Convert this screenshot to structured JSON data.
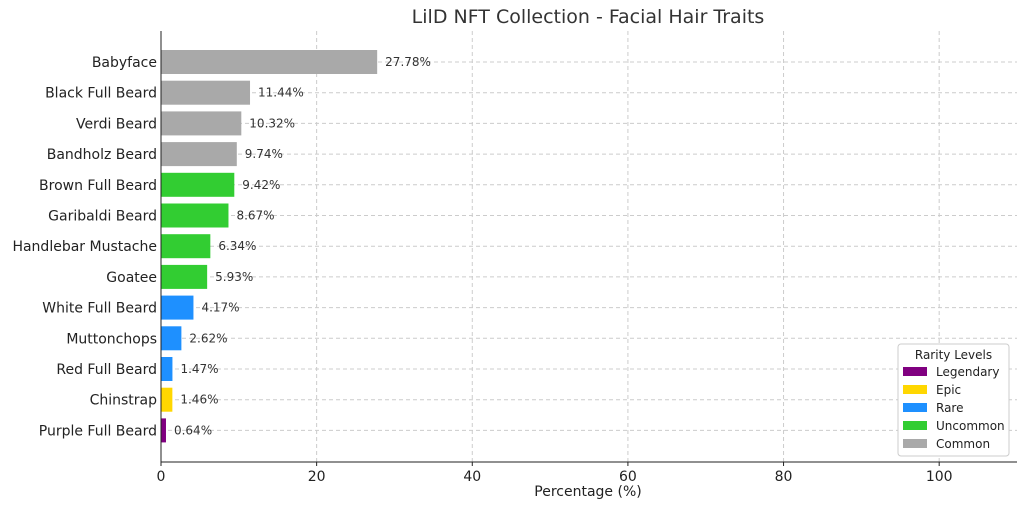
{
  "chart_data": {
    "type": "bar",
    "orientation": "horizontal",
    "title": "LilD NFT Collection - Facial Hair Traits",
    "xlabel": "Percentage (%)",
    "ylabel": "",
    "xlim": [
      0,
      110
    ],
    "xticks": [
      0,
      20,
      40,
      60,
      80,
      100
    ],
    "grid": true,
    "categories": [
      "Babyface",
      "Black Full Beard",
      "Verdi Beard",
      "Bandholz Beard",
      "Brown Full Beard",
      "Garibaldi Beard",
      "Handlebar Mustache",
      "Goatee",
      "White Full Beard",
      "Muttonchops",
      "Red Full Beard",
      "Chinstrap",
      "Purple Full Beard"
    ],
    "values": [
      27.78,
      11.44,
      10.32,
      9.74,
      9.42,
      8.67,
      6.34,
      5.93,
      4.17,
      2.62,
      1.47,
      1.46,
      0.64
    ],
    "value_labels": [
      "27.78%",
      "11.44%",
      "10.32%",
      "9.74%",
      "9.42%",
      "8.67%",
      "6.34%",
      "5.93%",
      "4.17%",
      "2.62%",
      "1.47%",
      "1.46%",
      "0.64%"
    ],
    "rarity": [
      "Common",
      "Common",
      "Common",
      "Common",
      "Uncommon",
      "Uncommon",
      "Uncommon",
      "Uncommon",
      "Rare",
      "Rare",
      "Rare",
      "Epic",
      "Legendary"
    ],
    "legend": {
      "title": "Rarity Levels",
      "placement": "lower-right",
      "entries": [
        {
          "name": "Legendary",
          "color": "#800080"
        },
        {
          "name": "Epic",
          "color": "#FFD700"
        },
        {
          "name": "Rare",
          "color": "#1E90FF"
        },
        {
          "name": "Uncommon",
          "color": "#32CD32"
        },
        {
          "name": "Common",
          "color": "#A9A9A9"
        }
      ]
    }
  }
}
